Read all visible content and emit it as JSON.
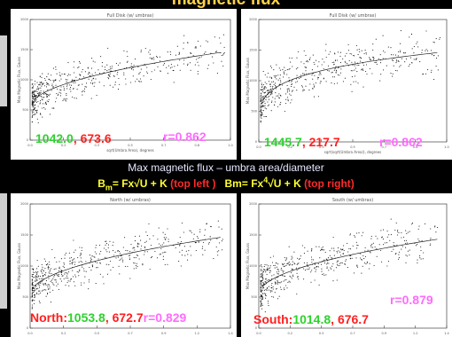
{
  "slide": {
    "title": "magnetic flux"
  },
  "middle": {
    "line1": "Max magnetic flux – umbra area/diameter",
    "left_formula_prefix": "B",
    "left_formula_sub": "m",
    "left_formula_body": "= Fx√U + K",
    "left_formula_note": "(top left )",
    "right_formula_prefix": "Bm= Fx",
    "right_formula_sup": "4",
    "right_formula_body": "√U + K",
    "right_formula_note": "(top right)"
  },
  "panels": {
    "top_left": {
      "title": "Full Disk (w/ umbras)",
      "ylabel": "Max Magnetic Flux, Gauss",
      "xlabel": "sqrt(Umbra Area), degrees",
      "fit_F": "1042.0",
      "fit_K": "673.6",
      "r_text": "r=0.862"
    },
    "top_right": {
      "title": "Full Disk (w/ umbras)",
      "ylabel": "Max Magnetic Flux, Gauss",
      "xlabel": "sqrt(sqrt(Umbra Area)), degrees",
      "fit_F": "1445.7",
      "fit_K": "217.7",
      "r_text": "r=0.862"
    },
    "bottom_left": {
      "title": "North (w/ umbras)",
      "ylabel": "Max Magnetic Flux, Gauss",
      "hemisphere": "North:",
      "fit_F": "1053.8",
      "fit_K": "672.7",
      "r_text": "r=0.829"
    },
    "bottom_right": {
      "title": "South (w/ umbras)",
      "ylabel": "Max Magnetic Flux, Gauss",
      "hemisphere": "South:",
      "fit_F": "1014.8",
      "fit_K": "676.7",
      "r_text": "r=0.879"
    }
  },
  "chart_data": [
    {
      "type": "scatter",
      "title": "Full Disk (w/ umbras)",
      "ylabel": "Max Magnetic Flux, Gauss",
      "xlabel": "sqrt(Umbra Area), degrees",
      "fit": {
        "form": "F*sqrt(U)+K",
        "F": 1042.0,
        "K": 673.6,
        "r": 0.862
      },
      "xlim": [
        0,
        1.0
      ],
      "ylim": [
        0,
        2000
      ]
    },
    {
      "type": "scatter",
      "title": "Full Disk (w/ umbras)",
      "ylabel": "Max Magnetic Flux, Gauss",
      "xlabel": "sqrt(sqrt(Umbra Area)), degrees",
      "fit": {
        "form": "F*U^(1/4)+K",
        "F": 1445.7,
        "K": 217.7,
        "r": 0.862
      },
      "xlim": [
        0,
        1.0
      ],
      "ylim": [
        0,
        2000
      ]
    },
    {
      "type": "scatter",
      "title": "North (w/ umbras)",
      "ylabel": "Max Magnetic Flux, Gauss",
      "fit": {
        "form": "F*sqrt(U)+K",
        "F": 1053.8,
        "K": 672.7,
        "r": 0.829
      },
      "xlim": [
        0,
        1.4
      ],
      "ylim": [
        0,
        2000
      ]
    },
    {
      "type": "scatter",
      "title": "South (w/ umbras)",
      "ylabel": "Max Magnetic Flux, Gauss",
      "fit": {
        "form": "F*sqrt(U)+K",
        "F": 1014.8,
        "K": 676.7,
        "r": 0.879
      },
      "xlim": [
        0,
        1.4
      ],
      "ylim": [
        0,
        2000
      ]
    }
  ]
}
